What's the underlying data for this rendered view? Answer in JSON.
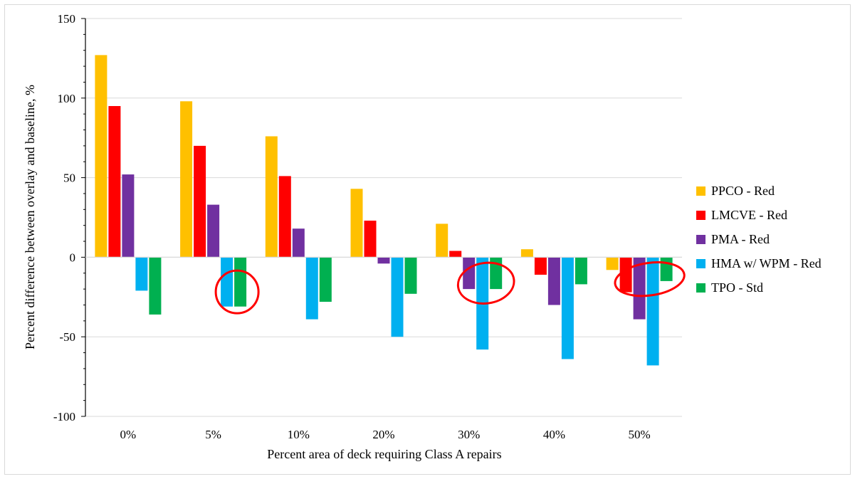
{
  "chart_data": {
    "type": "bar",
    "title": "",
    "xlabel": "Percent area of deck requiring Class A repairs",
    "ylabel": "Percent difference between overlay and baseline, %",
    "categories": [
      "0%",
      "5%",
      "10%",
      "20%",
      "30%",
      "40%",
      "50%"
    ],
    "ylim": [
      -100,
      150
    ],
    "yticks": [
      150,
      100,
      50,
      0,
      -50,
      -100
    ],
    "grid": true,
    "legend_position": "right",
    "series": [
      {
        "name": "PPCO - Red",
        "color": "#ffc000",
        "values": [
          127,
          98,
          76,
          43,
          21,
          5,
          -8
        ]
      },
      {
        "name": "LMCVE - Red",
        "color": "#ff0000",
        "values": [
          95,
          70,
          51,
          23,
          4,
          -11,
          -22
        ]
      },
      {
        "name": "PMA - Red",
        "color": "#7030a0",
        "values": [
          52,
          33,
          18,
          -4,
          -20,
          -30,
          -39
        ]
      },
      {
        "name": "HMA w/ WPM - Red",
        "color": "#00b0f0",
        "values": [
          -21,
          -31,
          -39,
          -50,
          -58,
          -64,
          -68
        ]
      },
      {
        "name": "TPO - Std",
        "color": "#00b050",
        "values": [
          -36,
          -31,
          -28,
          -23,
          -20,
          -17,
          -15
        ]
      }
    ],
    "annotations": [
      {
        "shape": "ellipse",
        "color": "#ff0000",
        "category": "5%",
        "series": [
          "HMA w/ WPM - Red",
          "TPO - Std"
        ]
      },
      {
        "shape": "ellipse",
        "color": "#ff0000",
        "category": "30%",
        "series": [
          "PMA - Red",
          "HMA w/ WPM - Red",
          "TPO - Std"
        ]
      },
      {
        "shape": "ellipse",
        "color": "#ff0000",
        "category": "50%",
        "series": [
          "LMCVE - Red",
          "PMA - Red",
          "HMA w/ WPM - Red",
          "TPO - Std"
        ]
      }
    ]
  }
}
